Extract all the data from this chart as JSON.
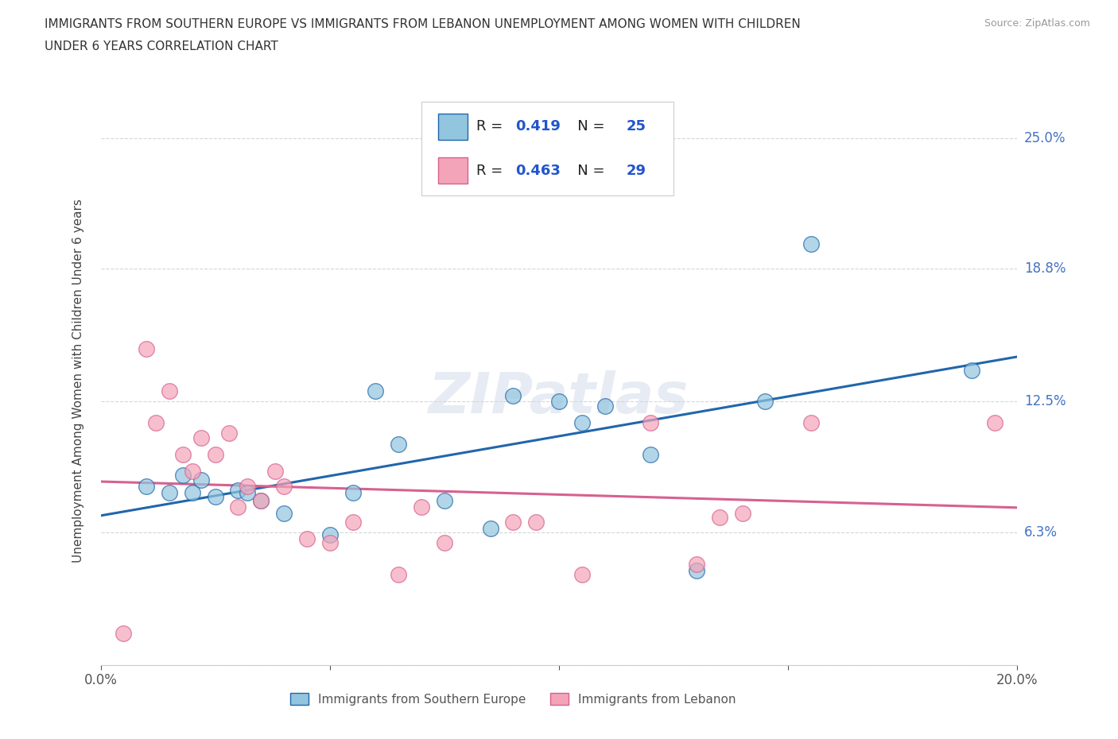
{
  "title_line1": "IMMIGRANTS FROM SOUTHERN EUROPE VS IMMIGRANTS FROM LEBANON UNEMPLOYMENT AMONG WOMEN WITH CHILDREN",
  "title_line2": "UNDER 6 YEARS CORRELATION CHART",
  "source": "Source: ZipAtlas.com",
  "ylabel": "Unemployment Among Women with Children Under 6 years",
  "xlim": [
    0.0,
    0.2
  ],
  "ylim": [
    0.0,
    0.27
  ],
  "yticks": [
    0.0,
    0.063,
    0.125,
    0.188,
    0.25
  ],
  "ytick_labels": [
    "",
    "6.3%",
    "12.5%",
    "18.8%",
    "25.0%"
  ],
  "xticks": [
    0.0,
    0.05,
    0.1,
    0.15,
    0.2
  ],
  "xtick_labels": [
    "0.0%",
    "",
    "",
    "",
    "20.0%"
  ],
  "R_blue": "0.419",
  "N_blue": "25",
  "R_pink": "0.463",
  "N_pink": "29",
  "blue_scatter_color": "#92c5de",
  "pink_scatter_color": "#f4a4b8",
  "blue_line_color": "#2166ac",
  "pink_line_color": "#d6618f",
  "watermark": "ZIPatlas",
  "blue_scatter_x": [
    0.01,
    0.015,
    0.018,
    0.02,
    0.022,
    0.025,
    0.03,
    0.032,
    0.035,
    0.04,
    0.05,
    0.055,
    0.06,
    0.065,
    0.075,
    0.085,
    0.09,
    0.1,
    0.105,
    0.11,
    0.12,
    0.13,
    0.145,
    0.155,
    0.19
  ],
  "blue_scatter_y": [
    0.085,
    0.082,
    0.09,
    0.082,
    0.088,
    0.08,
    0.083,
    0.082,
    0.078,
    0.072,
    0.062,
    0.082,
    0.13,
    0.105,
    0.078,
    0.065,
    0.128,
    0.125,
    0.115,
    0.123,
    0.1,
    0.045,
    0.125,
    0.2,
    0.14
  ],
  "pink_scatter_x": [
    0.005,
    0.01,
    0.012,
    0.015,
    0.018,
    0.02,
    0.022,
    0.025,
    0.028,
    0.03,
    0.032,
    0.035,
    0.038,
    0.04,
    0.045,
    0.05,
    0.055,
    0.065,
    0.07,
    0.075,
    0.09,
    0.095,
    0.105,
    0.12,
    0.13,
    0.135,
    0.14,
    0.155,
    0.195
  ],
  "pink_scatter_y": [
    0.015,
    0.15,
    0.115,
    0.13,
    0.1,
    0.092,
    0.108,
    0.1,
    0.11,
    0.075,
    0.085,
    0.078,
    0.092,
    0.085,
    0.06,
    0.058,
    0.068,
    0.043,
    0.075,
    0.058,
    0.068,
    0.068,
    0.043,
    0.115,
    0.048,
    0.07,
    0.072,
    0.115,
    0.115
  ],
  "legend_label_blue": "Immigrants from Southern Europe",
  "legend_label_pink": "Immigrants from Lebanon",
  "background_color": "#ffffff",
  "grid_color": "#cccccc",
  "right_tick_color": "#4472c4",
  "title_color": "#333333",
  "source_color": "#999999"
}
